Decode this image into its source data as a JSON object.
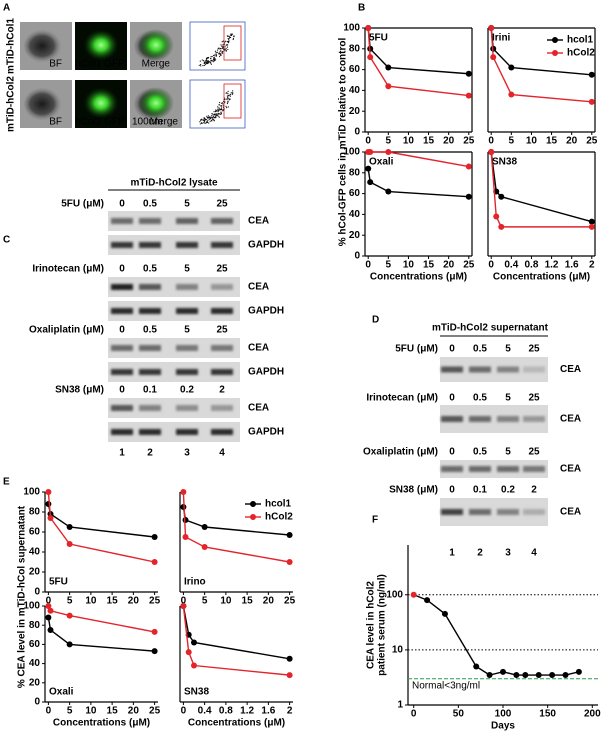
{
  "panel_labels": [
    "A",
    "B",
    "C",
    "D",
    "E",
    "F"
  ],
  "panel_a": {
    "rows": [
      {
        "label": "mTiD-hCol1",
        "captions": [
          "BF",
          "hCol1 GFP",
          "Merge"
        ]
      },
      {
        "label": "mTiD-hCol2",
        "captions": [
          "BF",
          "hCol2 GFP",
          "100um",
          "Merge"
        ]
      }
    ]
  },
  "panel_b": {
    "y_label": "% hCol-GFP cells in mTiD relative to control"
  },
  "panel_c": {
    "title": "mTiD-hCol2 lysate",
    "groups": [
      {
        "drug": "5FU (μM)",
        "doses": [
          0,
          0.5,
          5,
          25
        ],
        "bands": [
          "CEA",
          "GAPDH"
        ]
      },
      {
        "drug": "Irinotecan (μM)",
        "doses": [
          0,
          0.5,
          5,
          25
        ],
        "bands": [
          "CEA",
          "GAPDH"
        ]
      },
      {
        "drug": "Oxaliplatin (μM)",
        "doses": [
          0,
          0.5,
          5,
          25
        ],
        "bands": [
          "CEA",
          "GAPDH"
        ]
      },
      {
        "drug": "SN38 (μM)",
        "doses": [
          0,
          0.1,
          0.2,
          2
        ],
        "bands": [
          "CEA",
          "GAPDH"
        ]
      }
    ],
    "lanes": [
      1,
      2,
      3,
      4
    ]
  },
  "panel_d": {
    "title": "mTiD-hCol2 supernatant",
    "groups": [
      {
        "drug": "5FU (μM)",
        "doses": [
          0,
          0.5,
          5,
          25
        ],
        "band": "CEA"
      },
      {
        "drug": "Irinotecan (μM)",
        "doses": [
          0,
          0.5,
          5,
          25
        ],
        "band": "CEA"
      },
      {
        "drug": "Oxaliplatin (μM)",
        "doses": [
          0,
          0.5,
          5,
          25
        ],
        "band": "CEA"
      },
      {
        "drug": "SN38 (μM)",
        "doses": [
          0,
          0.1,
          0.2,
          2
        ],
        "band": "CEA"
      }
    ],
    "lanes": [
      1,
      2,
      3,
      4
    ]
  },
  "panel_e": {
    "y_label": "% CEA level in mTiD-hCol supernatant"
  },
  "chart_data": [
    {
      "type": "line",
      "title": "5FU",
      "x": [
        0,
        0.5,
        5,
        25
      ],
      "series": [
        {
          "color": "#000000",
          "values": [
            100,
            80,
            62,
            56
          ]
        },
        {
          "color": "#e3242b",
          "values": [
            100,
            72,
            44,
            35
          ]
        }
      ],
      "xlim": [
        0,
        25
      ],
      "ylim": [
        0,
        100
      ],
      "xticks": [
        0,
        5,
        10,
        15,
        20,
        25
      ],
      "yticks": [
        0,
        20,
        40,
        60,
        80,
        100
      ]
    },
    {
      "type": "line",
      "title": "Irini",
      "x": [
        0,
        0.5,
        5,
        25
      ],
      "series": [
        {
          "name": "hcol1",
          "color": "#000000",
          "values": [
            100,
            80,
            62,
            55
          ]
        },
        {
          "name": "hCol2",
          "color": "#e3242b",
          "values": [
            100,
            72,
            36,
            29
          ]
        }
      ],
      "xlim": [
        0,
        25
      ],
      "ylim": [
        0,
        100
      ],
      "xticks": [
        0,
        5,
        10,
        15,
        20,
        25
      ],
      "legend": "upper right"
    },
    {
      "type": "line",
      "title": "Oxali",
      "x": [
        0,
        0.5,
        5,
        25
      ],
      "series": [
        {
          "color": "#000000",
          "values": [
            84,
            71,
            62,
            57
          ]
        },
        {
          "color": "#e3242b",
          "values": [
            100,
            100,
            100,
            86
          ]
        }
      ],
      "xlim": [
        0,
        25
      ],
      "ylim": [
        0,
        100
      ],
      "xticks": [
        0,
        5,
        10,
        15,
        20,
        25
      ],
      "yticks": [
        0,
        20,
        40,
        60,
        80,
        100
      ],
      "x_label": "Concentrations (μM)"
    },
    {
      "type": "line",
      "title": "SN38",
      "x": [
        0,
        0.1,
        0.2,
        2
      ],
      "series": [
        {
          "color": "#000000",
          "values": [
            100,
            62,
            57,
            33
          ]
        },
        {
          "color": "#e3242b",
          "values": [
            100,
            38,
            28,
            28
          ]
        }
      ],
      "xlim": [
        0,
        2
      ],
      "ylim": [
        0,
        100
      ],
      "xticks": [
        0,
        0.4,
        0.8,
        1.2,
        1.6,
        2
      ],
      "x_label": "Concentrations (μM)"
    },
    {
      "type": "line",
      "title": "5FU",
      "x": [
        0,
        0.5,
        5,
        25
      ],
      "series": [
        {
          "color": "#000000",
          "values": [
            88,
            78,
            65,
            55
          ]
        },
        {
          "color": "#e3242b",
          "values": [
            100,
            74,
            48,
            30
          ]
        }
      ],
      "xlim": [
        0,
        25
      ],
      "ylim": [
        0,
        100
      ],
      "xticks": [
        0,
        5,
        10,
        15,
        20,
        25
      ],
      "yticks": [
        0,
        20,
        40,
        60,
        80,
        100
      ]
    },
    {
      "type": "line",
      "title": "Irino",
      "x": [
        0,
        0.5,
        5,
        25
      ],
      "series": [
        {
          "name": "hcol1",
          "color": "#000000",
          "values": [
            85,
            72,
            65,
            57
          ]
        },
        {
          "name": "hCol2",
          "color": "#e3242b",
          "values": [
            100,
            55,
            45,
            30
          ]
        }
      ],
      "xlim": [
        0,
        25
      ],
      "ylim": [
        0,
        100
      ],
      "xticks": [
        0,
        5,
        10,
        15,
        20,
        25
      ],
      "legend": "upper right"
    },
    {
      "type": "line",
      "title": "Oxali",
      "x": [
        0,
        0.5,
        5,
        25
      ],
      "series": [
        {
          "color": "#000000",
          "values": [
            88,
            75,
            60,
            53
          ]
        },
        {
          "color": "#e3242b",
          "values": [
            100,
            95,
            90,
            73
          ]
        }
      ],
      "xlim": [
        0,
        25
      ],
      "ylim": [
        0,
        100
      ],
      "xticks": [
        0,
        5,
        10,
        15,
        20,
        25
      ],
      "yticks": [
        0,
        20,
        40,
        60,
        80,
        100
      ],
      "x_label": "Concentrations (μM)"
    },
    {
      "type": "line",
      "title": "SN38",
      "x": [
        0,
        0.1,
        0.2,
        2
      ],
      "series": [
        {
          "color": "#000000",
          "values": [
            100,
            70,
            62,
            45
          ]
        },
        {
          "color": "#e3242b",
          "values": [
            100,
            52,
            38,
            28
          ]
        }
      ],
      "xlim": [
        0,
        2
      ],
      "ylim": [
        0,
        100
      ],
      "xticks": [
        0,
        0.4,
        0.8,
        1.2,
        1.6,
        2
      ],
      "x_label": "Concentrations (μM)"
    },
    {
      "type": "line",
      "x": [
        0,
        15,
        35,
        70,
        85,
        100,
        115,
        125,
        140,
        155,
        170,
        185
      ],
      "series": [
        {
          "color": "#000000",
          "marker_colors": [
            "#e3242b",
            "#000000",
            "#000000",
            "#000000",
            "#000000",
            "#000000",
            "#000000",
            "#000000",
            "#000000",
            "#000000",
            "#000000",
            "#000000"
          ],
          "values": [
            100,
            80,
            45,
            5,
            3.5,
            4,
            3.5,
            3.5,
            3.5,
            3.5,
            3.5,
            4
          ]
        }
      ],
      "xlim": [
        0,
        200
      ],
      "ylim": [
        1,
        800
      ],
      "log_y": true,
      "xticks": [
        0,
        50,
        100,
        150,
        200
      ],
      "yticks": [
        1,
        10,
        100
      ],
      "x_label": "Days",
      "y_label": [
        "CEA level in hCol2",
        "patient serum (ng/ml)"
      ],
      "hlines": [
        {
          "value": 100,
          "style": "dotted",
          "color": "#000000"
        },
        {
          "value": 10,
          "style": "dotted",
          "color": "#000000"
        },
        {
          "value": 3,
          "style": "dashed",
          "color": "#22a04b",
          "label": "Normal<3ng/ml"
        }
      ]
    }
  ]
}
